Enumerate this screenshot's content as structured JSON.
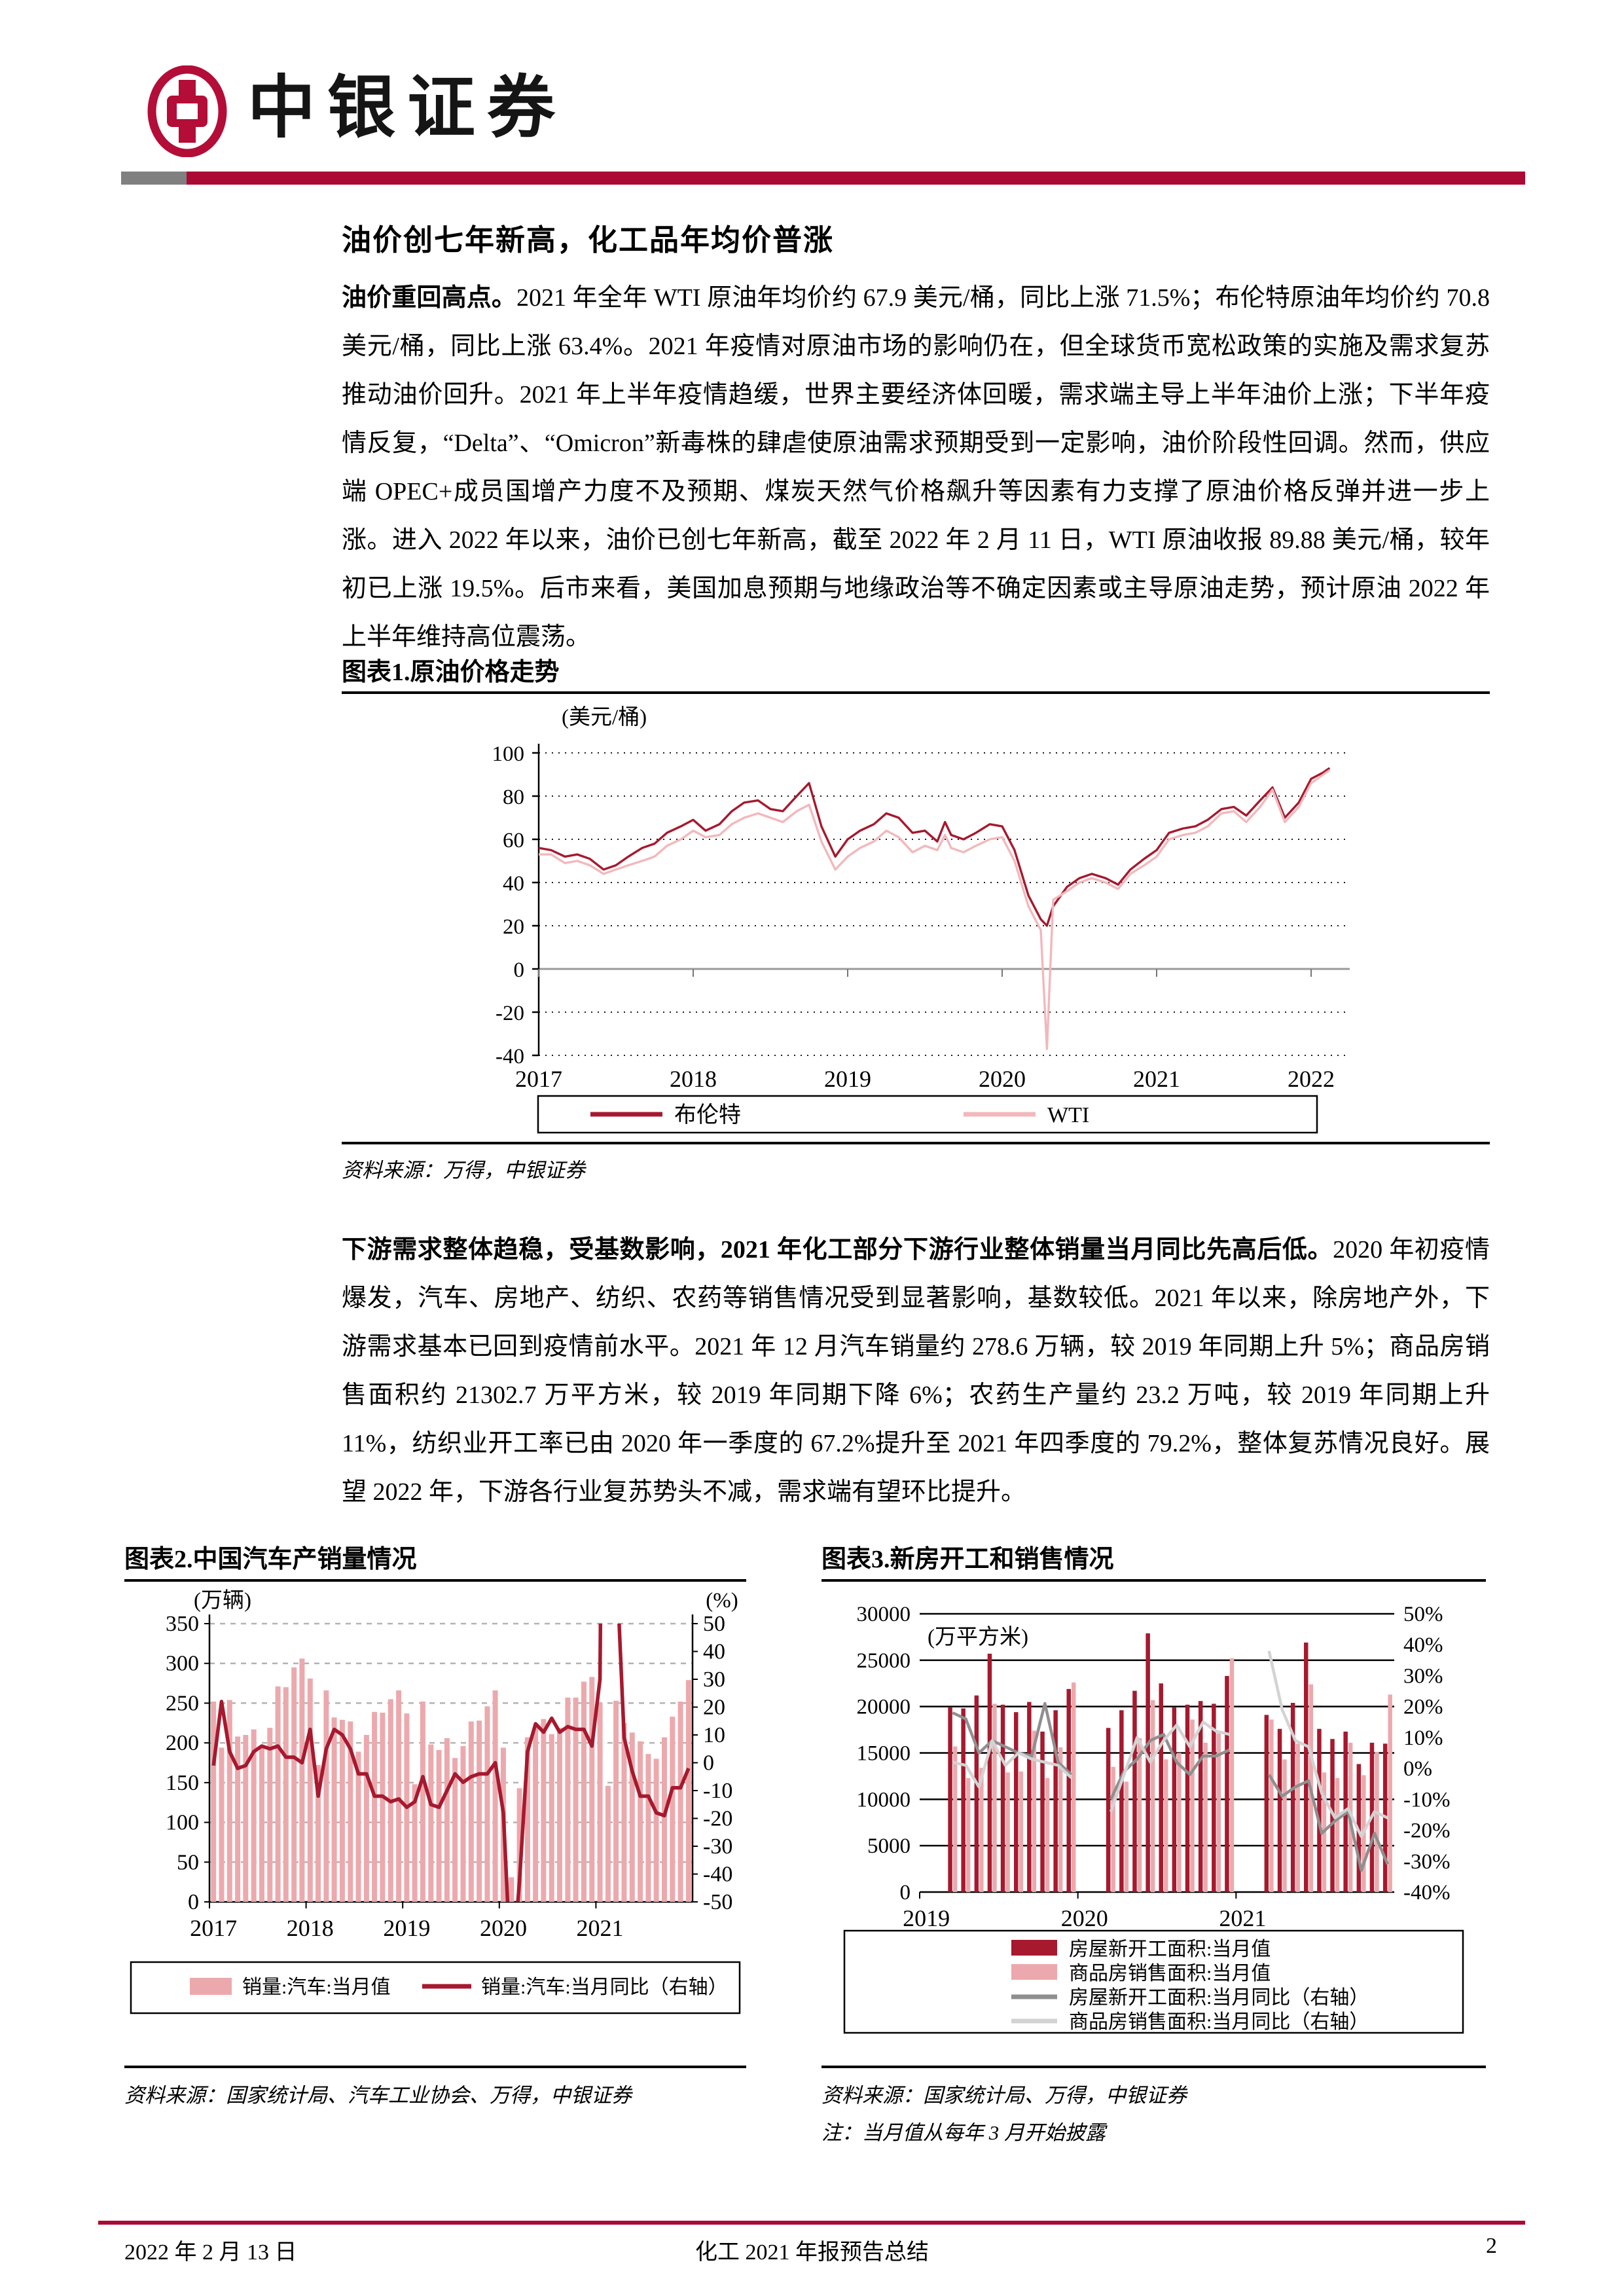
{
  "header": {
    "brand": "中银证券"
  },
  "article": {
    "title": "油价创七年新高，化工品年均价普涨",
    "para1_lead": "油价重回高点。",
    "para1_rest": "2021 年全年 WTI 原油年均价约 67.9 美元/桶，同比上涨 71.5%；布伦特原油年均价约 70.8 美元/桶，同比上涨 63.4%。2021 年疫情对原油市场的影响仍在，但全球货币宽松政策的实施及需求复苏推动油价回升。2021 年上半年疫情趋缓，世界主要经济体回暖，需求端主导上半年油价上涨；下半年疫情反复，“Delta”、“Omicron”新毒株的肆虐使原油需求预期受到一定影响，油价阶段性回调。然而，供应端 OPEC+成员国增产力度不及预期、煤炭天然气价格飙升等因素有力支撑了原油价格反弹并进一步上涨。进入 2022 年以来，油价已创七年新高，截至 2022 年 2 月 11 日，WTI 原油收报 89.88 美元/桶，较年初已上涨 19.5%。后市来看，美国加息预期与地缘政治等不确定因素或主导原油走势，预计原油 2022 年上半年维持高位震荡。",
    "para2_lead": "下游需求整体趋稳，受基数影响，2021 年化工部分下游行业整体销量当月同比先高后低。",
    "para2_rest": "2020 年初疫情爆发，汽车、房地产、纺织、农药等销售情况受到显著影响，基数较低。2021 年以来，除房地产外，下游需求基本已回到疫情前水平。2021 年 12 月汽车销量约 278.6 万辆，较 2019 年同期上升 5%；商品房销售面积约 21302.7 万平方米，较 2019 年同期下降 6%；农药生产量约 23.2 万吨，较 2019 年同期上升 11%，纺织业开工率已由 2020 年一季度的 67.2%提升至 2021 年四季度的 79.2%，整体复苏情况良好。展望 2022 年，下游各行业复苏势头不减，需求端有望环比提升。"
  },
  "figures": {
    "fig1": {
      "title": "图表1.原油价格走势",
      "source": "资料来源：万得，中银证券"
    },
    "fig2": {
      "title": "图表2.中国汽车产销量情况",
      "source": "资料来源：国家统计局、汽车工业协会、万得，中银证券"
    },
    "fig3": {
      "title": "图表3.新房开工和销售情况",
      "source": "资料来源：国家统计局、万得，中银证券",
      "note": "注：当月值从每年 3 月开始披露"
    }
  },
  "footer": {
    "date": "2022 年 2 月 13 日",
    "doc_title": "化工 2021 年报预告总结",
    "page": "2"
  },
  "colors": {
    "brand_red": "#AB0A34",
    "header_gray": "#808080",
    "dark_red_series": "#A6192E",
    "pink_bar": "#ECA9AD",
    "pink_line": "#F2B8BC",
    "dark_gray_line": "#8F8F8F",
    "light_gray_line": "#D3D3D3"
  },
  "chart_data": [
    {
      "id": "oil",
      "type": "line",
      "title": "原油价格走势",
      "unit": "(美元/桶)",
      "y_left": {
        "min": -40,
        "max": 100,
        "step": 20
      },
      "x_range": [
        2017,
        2022.25
      ],
      "x_ticks": [
        2017,
        2018,
        2019,
        2020,
        2021,
        2022
      ],
      "grid": "dotted",
      "legend_position": "bottom",
      "series": [
        {
          "name": "布伦特",
          "color": "#A6192E",
          "points": [
            [
              2017.0,
              56
            ],
            [
              2017.08,
              55
            ],
            [
              2017.17,
              52
            ],
            [
              2017.25,
              53
            ],
            [
              2017.33,
              51
            ],
            [
              2017.42,
              46
            ],
            [
              2017.5,
              48
            ],
            [
              2017.58,
              52
            ],
            [
              2017.67,
              56
            ],
            [
              2017.75,
              58
            ],
            [
              2017.83,
              63
            ],
            [
              2017.92,
              66
            ],
            [
              2018.0,
              69
            ],
            [
              2018.08,
              64
            ],
            [
              2018.17,
              67
            ],
            [
              2018.25,
              73
            ],
            [
              2018.33,
              77
            ],
            [
              2018.42,
              78
            ],
            [
              2018.5,
              74
            ],
            [
              2018.58,
              73
            ],
            [
              2018.67,
              80
            ],
            [
              2018.75,
              86
            ],
            [
              2018.83,
              66
            ],
            [
              2018.92,
              52
            ],
            [
              2019.0,
              60
            ],
            [
              2019.08,
              64
            ],
            [
              2019.17,
              67
            ],
            [
              2019.25,
              72
            ],
            [
              2019.33,
              70
            ],
            [
              2019.42,
              63
            ],
            [
              2019.5,
              64
            ],
            [
              2019.58,
              59
            ],
            [
              2019.63,
              68
            ],
            [
              2019.67,
              62
            ],
            [
              2019.75,
              60
            ],
            [
              2019.83,
              63
            ],
            [
              2019.92,
              67
            ],
            [
              2020.0,
              66
            ],
            [
              2020.08,
              55
            ],
            [
              2020.17,
              34
            ],
            [
              2020.25,
              23
            ],
            [
              2020.29,
              20
            ],
            [
              2020.33,
              29
            ],
            [
              2020.42,
              38
            ],
            [
              2020.5,
              42
            ],
            [
              2020.58,
              44
            ],
            [
              2020.67,
              42
            ],
            [
              2020.75,
              39
            ],
            [
              2020.83,
              46
            ],
            [
              2020.92,
              51
            ],
            [
              2021.0,
              55
            ],
            [
              2021.08,
              63
            ],
            [
              2021.17,
              65
            ],
            [
              2021.25,
              66
            ],
            [
              2021.33,
              69
            ],
            [
              2021.42,
              74
            ],
            [
              2021.5,
              75
            ],
            [
              2021.58,
              71
            ],
            [
              2021.67,
              78
            ],
            [
              2021.75,
              84
            ],
            [
              2021.83,
              70
            ],
            [
              2021.92,
              77
            ],
            [
              2022.0,
              88
            ],
            [
              2022.08,
              91
            ],
            [
              2022.12,
              93
            ]
          ]
        },
        {
          "name": "WTI",
          "color": "#F2B8BC",
          "points": [
            [
              2017.0,
              53
            ],
            [
              2017.08,
              53
            ],
            [
              2017.17,
              49
            ],
            [
              2017.25,
              50
            ],
            [
              2017.33,
              48
            ],
            [
              2017.42,
              44
            ],
            [
              2017.5,
              46
            ],
            [
              2017.58,
              48
            ],
            [
              2017.67,
              50
            ],
            [
              2017.75,
              52
            ],
            [
              2017.83,
              57
            ],
            [
              2017.92,
              60
            ],
            [
              2018.0,
              64
            ],
            [
              2018.08,
              61
            ],
            [
              2018.17,
              62
            ],
            [
              2018.25,
              67
            ],
            [
              2018.33,
              70
            ],
            [
              2018.42,
              72
            ],
            [
              2018.5,
              70
            ],
            [
              2018.58,
              68
            ],
            [
              2018.67,
              73
            ],
            [
              2018.75,
              76
            ],
            [
              2018.83,
              59
            ],
            [
              2018.92,
              46
            ],
            [
              2019.0,
              52
            ],
            [
              2019.08,
              56
            ],
            [
              2019.17,
              59
            ],
            [
              2019.25,
              64
            ],
            [
              2019.33,
              61
            ],
            [
              2019.42,
              54
            ],
            [
              2019.5,
              57
            ],
            [
              2019.58,
              55
            ],
            [
              2019.63,
              62
            ],
            [
              2019.67,
              56
            ],
            [
              2019.75,
              54
            ],
            [
              2019.83,
              57
            ],
            [
              2019.92,
              60
            ],
            [
              2020.0,
              61
            ],
            [
              2020.08,
              50
            ],
            [
              2020.17,
              29
            ],
            [
              2020.25,
              18
            ],
            [
              2020.29,
              -37
            ],
            [
              2020.33,
              32
            ],
            [
              2020.42,
              36
            ],
            [
              2020.5,
              40
            ],
            [
              2020.58,
              42
            ],
            [
              2020.67,
              40
            ],
            [
              2020.75,
              37
            ],
            [
              2020.83,
              44
            ],
            [
              2020.92,
              48
            ],
            [
              2021.0,
              52
            ],
            [
              2021.08,
              60
            ],
            [
              2021.17,
              62
            ],
            [
              2021.25,
              63
            ],
            [
              2021.33,
              66
            ],
            [
              2021.42,
              72
            ],
            [
              2021.5,
              73
            ],
            [
              2021.58,
              68
            ],
            [
              2021.67,
              75
            ],
            [
              2021.75,
              83
            ],
            [
              2021.83,
              68
            ],
            [
              2021.92,
              75
            ],
            [
              2022.0,
              86
            ],
            [
              2022.08,
              90
            ],
            [
              2022.12,
              92
            ]
          ]
        }
      ]
    },
    {
      "id": "auto",
      "type": "bar-line",
      "title": "中国汽车产销量情况",
      "unit_left": "(万辆)",
      "unit_right": "(%)",
      "y_left": {
        "min": 0,
        "max": 350,
        "step": 50
      },
      "y_right": {
        "min": -50,
        "max": 50,
        "step": 10
      },
      "x_labels": [
        "2017",
        "2018",
        "2019",
        "2020",
        "2021"
      ],
      "grid": "dashed",
      "legend_position": "bottom",
      "bars": {
        "name": "销量:汽车:当月值",
        "color": "#ECA9AD",
        "values": [
          252,
          194,
          254,
          208,
          210,
          217,
          197,
          219,
          271,
          270,
          295,
          306,
          281,
          172,
          266,
          232,
          229,
          227,
          189,
          210,
          239,
          238,
          255,
          266,
          237,
          148,
          252,
          198,
          191,
          206,
          181,
          196,
          227,
          228,
          246,
          266,
          194,
          31,
          143,
          207,
          219,
          230,
          211,
          219,
          257,
          257,
          277,
          283,
          250,
          146,
          253,
          225,
          213,
          202,
          186,
          180,
          207,
          233,
          252,
          279
        ]
      },
      "line": {
        "name": "销量:汽车:当月同比（右轴）",
        "color": "#A6192E",
        "axis": "right",
        "values": [
          -1,
          22,
          4,
          -2,
          -1,
          4,
          6,
          5,
          6,
          2,
          2,
          0,
          12,
          -12,
          5,
          12,
          10,
          5,
          -4,
          -4,
          -12,
          -12,
          -14,
          -13,
          -16,
          -14,
          -5,
          -15,
          -16,
          -10,
          -4,
          -7,
          -5,
          -4,
          -4,
          0,
          -18,
          -79,
          -43,
          4,
          14,
          11,
          16,
          11,
          13,
          12,
          12,
          6,
          30,
          365,
          75,
          9,
          -3,
          -12,
          -12,
          -18,
          -19,
          -9,
          -9,
          -2
        ]
      }
    },
    {
      "id": "housing",
      "type": "bar-line",
      "title": "新房开工和销售情况",
      "unit_left": "(万平方米)",
      "y_left": {
        "min": 0,
        "max": 30000,
        "step": 5000
      },
      "y_right": {
        "min": -40,
        "max": 50,
        "step": 10,
        "suffix": "%"
      },
      "x_labels": [
        "2019",
        "2020",
        "2021"
      ],
      "grid": "solid",
      "legend_position": "bottom",
      "bar_series": [
        {
          "name": "房屋新开工面积:当月值",
          "color": "#A6192E",
          "values": [
            null,
            null,
            19900,
            19800,
            21200,
            25700,
            20200,
            19400,
            20500,
            17300,
            19600,
            21900,
            null,
            null,
            17700,
            19600,
            21700,
            27900,
            22500,
            19900,
            20200,
            20600,
            20300,
            23300,
            null,
            null,
            19100,
            17600,
            20400,
            26900,
            17600,
            16500,
            17300,
            13800,
            16100,
            16000
          ]
        },
        {
          "name": "商品房销售面积:当月值",
          "color": "#ECA9AD",
          "values": [
            null,
            null,
            15700,
            12300,
            13400,
            20300,
            12900,
            13000,
            17400,
            12300,
            15600,
            22600,
            null,
            null,
            13500,
            11900,
            16600,
            20700,
            14300,
            15000,
            18600,
            16100,
            17100,
            25200,
            null,
            null,
            18600,
            14300,
            16000,
            22400,
            12900,
            12300,
            16100,
            12600,
            15100,
            21300
          ]
        }
      ],
      "line_series": [
        {
          "name": "房屋新开工面积:当月同比（右轴）",
          "color": "#8F8F8F",
          "axis": "right",
          "values": [
            null,
            null,
            18,
            16,
            5,
            9,
            7,
            5,
            4,
            21,
            2,
            -2,
            null,
            null,
            -10,
            -1,
            3,
            9,
            11,
            2,
            -2,
            4,
            4,
            6,
            null,
            null,
            -2,
            -9,
            -6,
            -4,
            -21,
            -17,
            -14,
            -33,
            -21,
            -31
          ]
        },
        {
          "name": "商品房销售面积:当月同比（右轴）",
          "color": "#D3D3D3",
          "axis": "right",
          "values": [
            null,
            null,
            2,
            1,
            -6,
            9,
            1,
            5,
            3,
            2,
            1,
            -3,
            null,
            null,
            -14,
            -2,
            10,
            2,
            9,
            14,
            7,
            15,
            12,
            11,
            null,
            null,
            38,
            19,
            9,
            7,
            -8,
            -16,
            -13,
            -22,
            -14,
            -16
          ]
        }
      ]
    }
  ]
}
